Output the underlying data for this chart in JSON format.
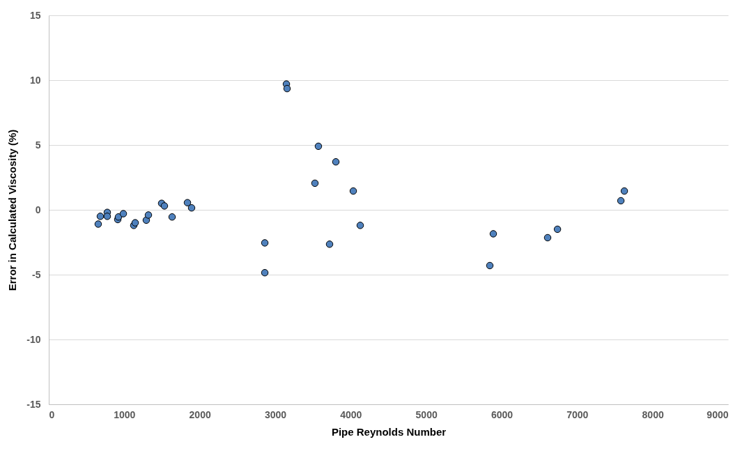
{
  "chart_data": {
    "type": "scatter",
    "xlabel": "Pipe Reynolds Number",
    "ylabel": "Error in Calculated Viscosity (%)",
    "x": [
      655,
      683,
      775,
      775,
      914,
      923,
      988,
      1126,
      1145,
      1292,
      1320,
      1495,
      1532,
      1634,
      1837,
      1892,
      3148,
      3157,
      3572,
      3803,
      3526,
      4034,
      4126,
      2862,
      3720,
      2862,
      5889,
      5843,
      6609,
      6739,
      7579,
      7625
    ],
    "series": [
      {
        "color": "#4f81bd",
        "values": [
          -1.1,
          -0.5,
          -0.2,
          -0.5,
          -0.75,
          -0.55,
          -0.3,
          -1.2,
          -1.0,
          -0.8,
          -0.4,
          0.5,
          0.3,
          -0.55,
          0.55,
          0.15,
          9.7,
          9.35,
          4.9,
          3.7,
          2.05,
          1.45,
          -1.2,
          -2.55,
          -2.65,
          -4.85,
          -1.85,
          -4.3,
          -2.15,
          -1.5,
          0.7,
          1.45
        ]
      }
    ],
    "xlim": [
      0,
      9000
    ],
    "xticks": [
      0,
      1000,
      2000,
      3000,
      4000,
      5000,
      6000,
      7000,
      8000,
      9000
    ],
    "ylim": [
      -15,
      15
    ],
    "yticks": [
      -15,
      -10,
      -5,
      0,
      5,
      10,
      15
    ],
    "grid": "y",
    "marker": "circle"
  }
}
